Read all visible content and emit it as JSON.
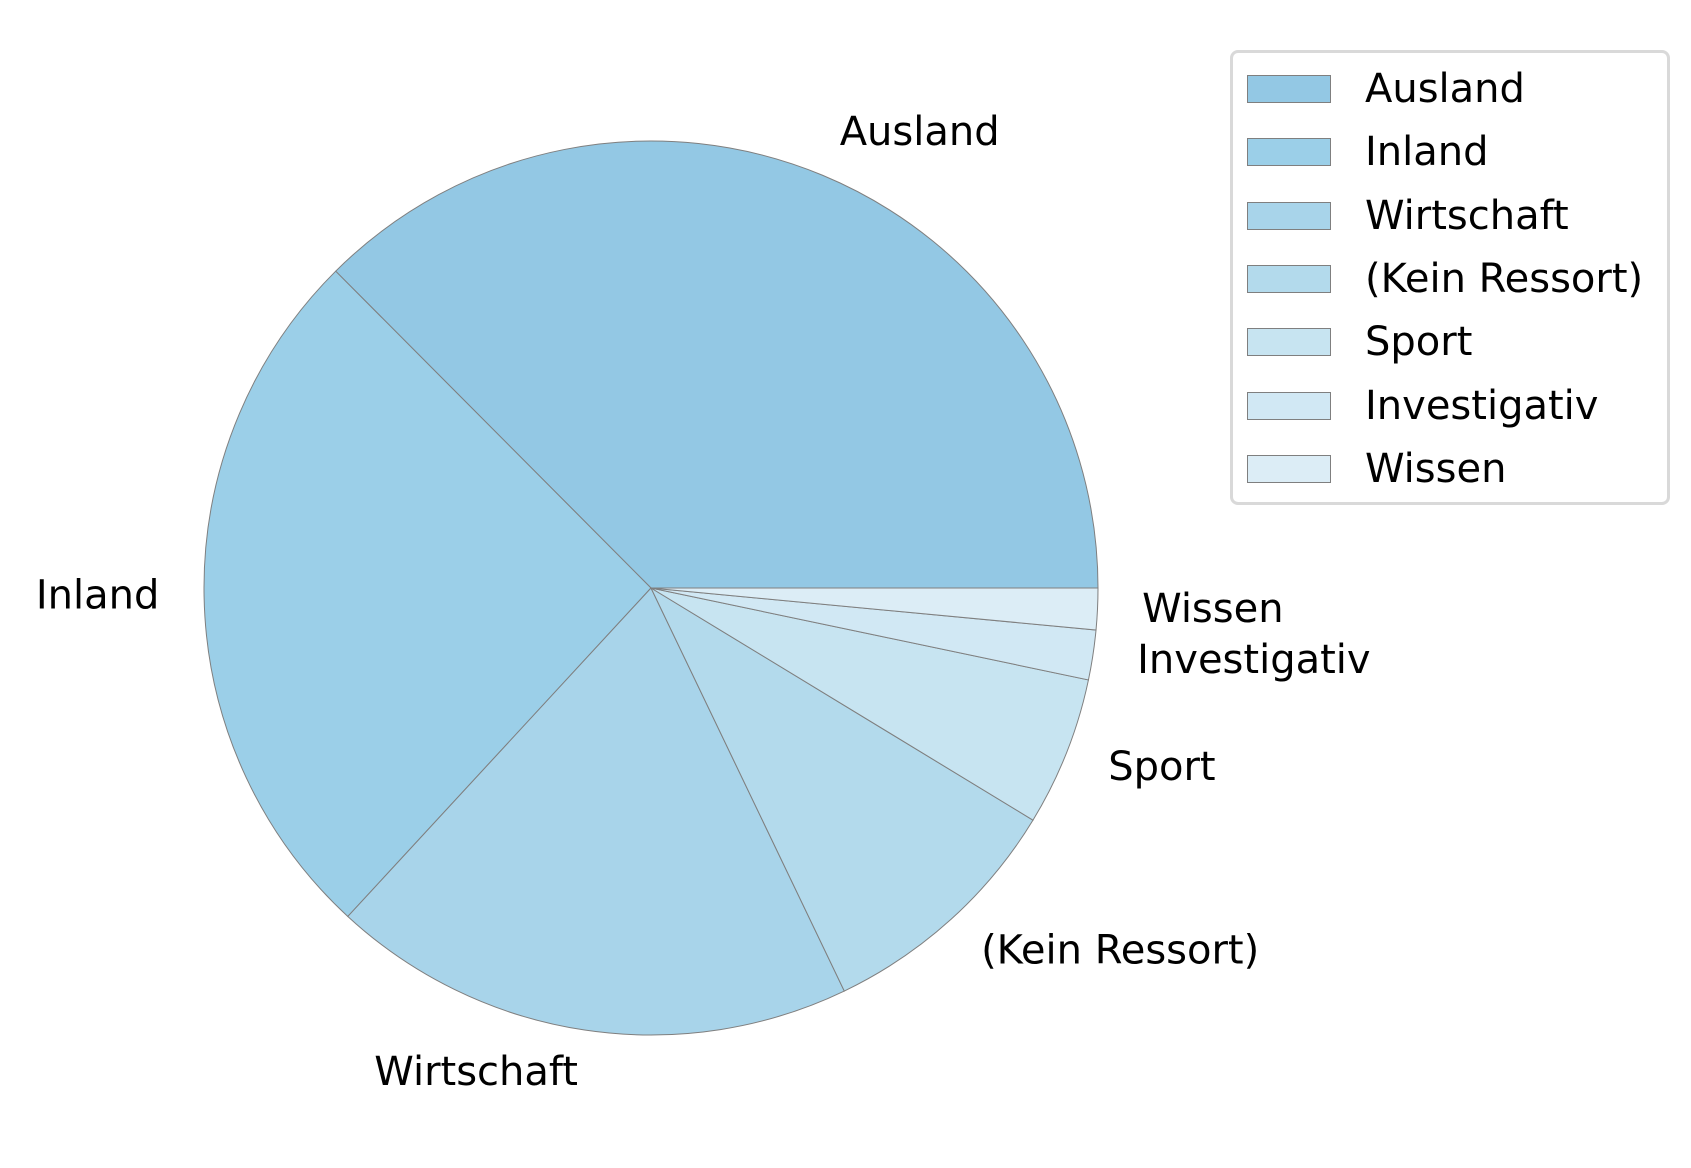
{
  "chart_data": {
    "type": "pie",
    "title": "",
    "categories": [
      "Ausland",
      "Inland",
      "Wirtschaft",
      "(Kein Ressort)",
      "Sport",
      "Investigativ",
      "Wissen"
    ],
    "values": [
      37.5,
      25.7,
      19.0,
      9.2,
      5.4,
      1.8,
      1.5
    ],
    "colors": [
      "#93c8e4",
      "#9bcfe8",
      "#a8d4ea",
      "#b3daec",
      "#c7e4f1",
      "#d1e8f4",
      "#dcedf6"
    ],
    "edge_color": "#7f7f7f",
    "start_angle_deg": 0,
    "direction": "counterclockwise",
    "legend_position": "top-right"
  }
}
